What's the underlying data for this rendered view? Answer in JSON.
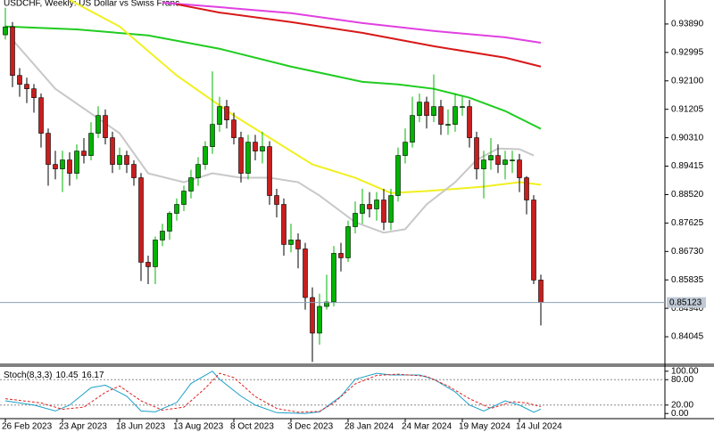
{
  "chart_data": [
    {
      "type": "candlestick",
      "title": "USDCHF, Weekly:  US Dollar vs Swiss Franc",
      "categories": [
        "26 Feb 2023",
        null,
        null,
        null,
        null,
        null,
        null,
        null,
        "23 Apr 2023",
        null,
        null,
        null,
        null,
        null,
        null,
        null,
        "18 Jun 2023",
        null,
        null,
        null,
        null,
        null,
        null,
        null,
        "13 Aug 2023",
        null,
        null,
        null,
        null,
        null,
        null,
        null,
        "8 Oct 2023",
        null,
        null,
        null,
        null,
        null,
        null,
        null,
        "3 Dec 2023",
        null,
        null,
        null,
        null,
        null,
        null,
        null,
        "28 Jan 2024",
        null,
        null,
        null,
        null,
        null,
        null,
        null,
        "24 Mar 2024",
        null,
        null,
        null,
        null,
        null,
        null,
        null,
        "19 May 2024",
        null,
        null,
        null,
        null,
        null,
        null,
        null,
        "14 Jul 2024",
        null,
        null,
        null
      ],
      "open": [
        0.9355,
        0.938,
        0.9227,
        0.9199,
        0.9185,
        0.9157,
        0.9045,
        0.8947,
        0.8933,
        0.8961,
        0.8919,
        0.8989,
        0.8975,
        0.9045,
        0.9101,
        0.9031,
        0.8947,
        0.8975,
        0.8947,
        0.8905,
        0.8639,
        0.8625,
        0.8709,
        0.8737,
        0.8793,
        0.8821,
        0.8863,
        0.8905,
        0.8947,
        0.9003,
        0.9073,
        0.9129,
        0.9087,
        0.9031,
        0.8919,
        0.9017,
        0.8989,
        0.9003,
        0.8849,
        0.8821,
        0.8695,
        0.8709,
        0.8681,
        0.8528,
        0.8416,
        0.85,
        0.8514,
        0.8667,
        0.8653,
        0.8751,
        0.8793,
        0.8821,
        0.8807,
        0.8835,
        0.8765,
        0.8849,
        0.8975,
        0.9017,
        0.9101,
        0.9143,
        0.9101,
        0.9129,
        0.9073,
        0.9073,
        0.9129,
        0.9129,
        0.9031,
        0.8933,
        0.8961,
        0.8975,
        0.8947,
        0.8961,
        0.8961,
        0.8905,
        0.8835,
        0.8583
      ],
      "high": [
        0.944,
        0.9395,
        0.925,
        0.922,
        0.92,
        0.917,
        0.906,
        0.899,
        0.899,
        0.8985,
        0.901,
        0.903,
        0.908,
        0.913,
        0.912,
        0.905,
        0.9,
        0.899,
        0.896,
        0.892,
        0.866,
        0.872,
        0.876,
        0.88,
        0.884,
        0.888,
        0.893,
        0.897,
        0.902,
        0.924,
        0.916,
        0.915,
        0.911,
        0.905,
        0.904,
        0.904,
        0.905,
        0.902,
        0.887,
        0.884,
        0.876,
        0.873,
        0.87,
        0.856,
        0.854,
        0.86,
        0.869,
        0.87,
        0.877,
        0.883,
        0.887,
        0.886,
        0.886,
        0.887,
        0.887,
        0.9,
        0.906,
        0.916,
        0.917,
        0.916,
        0.923,
        0.915,
        0.912,
        0.917,
        0.916,
        0.915,
        0.905,
        0.899,
        0.903,
        0.901,
        0.899,
        0.899,
        0.898,
        0.891,
        0.885,
        0.86
      ],
      "low": [
        0.934,
        0.919,
        0.916,
        0.914,
        0.911,
        0.9,
        0.888,
        0.89,
        0.886,
        0.888,
        0.89,
        0.895,
        0.896,
        0.903,
        0.901,
        0.892,
        0.893,
        0.892,
        0.888,
        0.858,
        0.857,
        0.857,
        0.869,
        0.871,
        0.877,
        0.88,
        0.884,
        0.888,
        0.893,
        0.898,
        0.905,
        0.906,
        0.901,
        0.889,
        0.89,
        0.896,
        0.895,
        0.882,
        0.878,
        0.866,
        0.867,
        0.862,
        0.849,
        0.8325,
        0.838,
        0.849,
        0.85,
        0.861,
        0.864,
        0.873,
        0.876,
        0.878,
        0.877,
        0.874,
        0.874,
        0.883,
        0.895,
        0.9,
        0.908,
        0.906,
        0.908,
        0.904,
        0.904,
        0.905,
        0.91,
        0.9,
        0.89,
        0.884,
        0.893,
        0.892,
        0.89,
        0.892,
        0.886,
        0.879,
        0.857,
        0.844
      ],
      "close": [
        0.938,
        0.9227,
        0.9199,
        0.9185,
        0.9157,
        0.9045,
        0.8947,
        0.8933,
        0.8961,
        0.8919,
        0.8989,
        0.8975,
        0.9045,
        0.9101,
        0.9031,
        0.8947,
        0.8975,
        0.8947,
        0.8905,
        0.8639,
        0.8625,
        0.8709,
        0.8737,
        0.8793,
        0.8821,
        0.8863,
        0.8905,
        0.8947,
        0.9003,
        0.9073,
        0.9129,
        0.9087,
        0.9031,
        0.8919,
        0.9017,
        0.8989,
        0.9003,
        0.8849,
        0.8821,
        0.8695,
        0.8709,
        0.8681,
        0.8528,
        0.8416,
        0.85,
        0.8514,
        0.8667,
        0.8653,
        0.8751,
        0.8793,
        0.8821,
        0.8807,
        0.8835,
        0.8765,
        0.8849,
        0.8975,
        0.9017,
        0.9101,
        0.9143,
        0.9101,
        0.9129,
        0.9073,
        0.9073,
        0.9129,
        0.9129,
        0.9031,
        0.8933,
        0.8961,
        0.8975,
        0.8947,
        0.8961,
        0.8961,
        0.8905,
        0.8835,
        0.8583,
        0.85123
      ],
      "up_color": "#00b400",
      "down_color": "#c81e1e",
      "overlays": [
        {
          "color": "#e040e0",
          "x": [
            22,
            30,
            40,
            50,
            60,
            70,
            75
          ],
          "values": [
            0.9456,
            0.9442,
            0.9423,
            0.9392,
            0.9367,
            0.9347,
            0.933
          ]
        },
        {
          "color": "#d81818",
          "x": [
            24,
            30,
            40,
            50,
            60,
            70,
            75
          ],
          "values": [
            0.9451,
            0.9425,
            0.9395,
            0.9361,
            0.9319,
            0.9283,
            0.9255
          ]
        },
        {
          "color": "#20cc20",
          "x": [
            0,
            10,
            20,
            30,
            40,
            50,
            55,
            60,
            65,
            70,
            75
          ],
          "values": [
            0.9381,
            0.9372,
            0.9353,
            0.9311,
            0.9255,
            0.9207,
            0.9199,
            0.9185,
            0.9157,
            0.9115,
            0.9059
          ]
        },
        {
          "color": "#f0f020",
          "x": [
            9,
            16,
            24,
            32,
            37,
            43,
            49,
            54,
            59,
            67,
            72,
            75
          ],
          "values": [
            0.9465,
            0.9381,
            0.9227,
            0.9101,
            0.9031,
            0.8947,
            0.8905,
            0.8857,
            0.8863,
            0.8877,
            0.8891,
            0.8883
          ]
        },
        {
          "color": "#c8c8c8",
          "x": [
            1,
            7,
            16,
            20,
            25,
            29,
            33,
            37,
            41,
            44,
            49,
            53,
            56,
            59,
            63,
            66,
            69,
            72,
            74
          ],
          "values": [
            0.9339,
            0.9185,
            0.9045,
            0.8919,
            0.8891,
            0.8919,
            0.8905,
            0.8905,
            0.8891,
            0.8849,
            0.8765,
            0.8732,
            0.8743,
            0.8821,
            0.8891,
            0.8961,
            0.8997,
            0.8995,
            0.8975
          ]
        }
      ],
      "ylim": [
        0.83206,
        0.94645
      ],
      "yticks": [
        {
          "value": 0.9389,
          "label": "0.93890"
        },
        0.92995,
        {
          "value": 0.921,
          "label": "0.92100"
        },
        0.91205,
        {
          "value": 0.9031,
          "label": "0.90310"
        },
        0.89415,
        {
          "value": 0.8852,
          "label": "0.88520"
        },
        0.87625,
        {
          "value": 0.8673,
          "label": "0.86730"
        },
        0.85835,
        {
          "value": 0.8494,
          "label": "0.84940"
        },
        0.84045
      ]
    },
    {
      "type": "line",
      "title": "Stoch(8,3,3)",
      "series": [
        {
          "color": "#1ca0c8",
          "style": "solid",
          "x": [
            0,
            4,
            7,
            9,
            12,
            14,
            17,
            19,
            21,
            24,
            26,
            29,
            30,
            33,
            35,
            38,
            42,
            44,
            47,
            49,
            52,
            54,
            58,
            60,
            63,
            65,
            67,
            70,
            72,
            74,
            75
          ],
          "values": [
            30,
            20,
            6,
            20,
            61,
            67,
            41,
            6,
            4,
            26,
            71,
            100,
            81,
            41,
            20,
            2,
            0,
            4,
            41,
            81,
            95,
            91,
            91,
            81,
            51,
            20,
            6,
            30,
            20,
            3,
            10.45
          ]
        },
        {
          "color": "#e02020",
          "style": "dashed",
          "x": [
            0,
            5,
            8,
            11,
            14,
            16,
            19,
            22,
            25,
            28,
            30,
            32,
            35,
            38,
            41,
            44,
            46,
            49,
            52,
            55,
            59,
            62,
            65,
            68,
            71,
            73,
            75
          ],
          "values": [
            35,
            25,
            10,
            15,
            50,
            65,
            30,
            8,
            15,
            60,
            95,
            85,
            40,
            12,
            3,
            5,
            25,
            70,
            90,
            93,
            88,
            65,
            35,
            12,
            28,
            25,
            16.17
          ]
        }
      ],
      "ylim": [
        -10,
        110
      ],
      "yticks": [
        {
          "value": 100,
          "label": "100.00"
        },
        {
          "value": 80,
          "label": "80.00"
        },
        {
          "value": 20,
          "label": "20.00"
        },
        {
          "value": 0,
          "label": "0.00"
        }
      ]
    }
  ]
}
